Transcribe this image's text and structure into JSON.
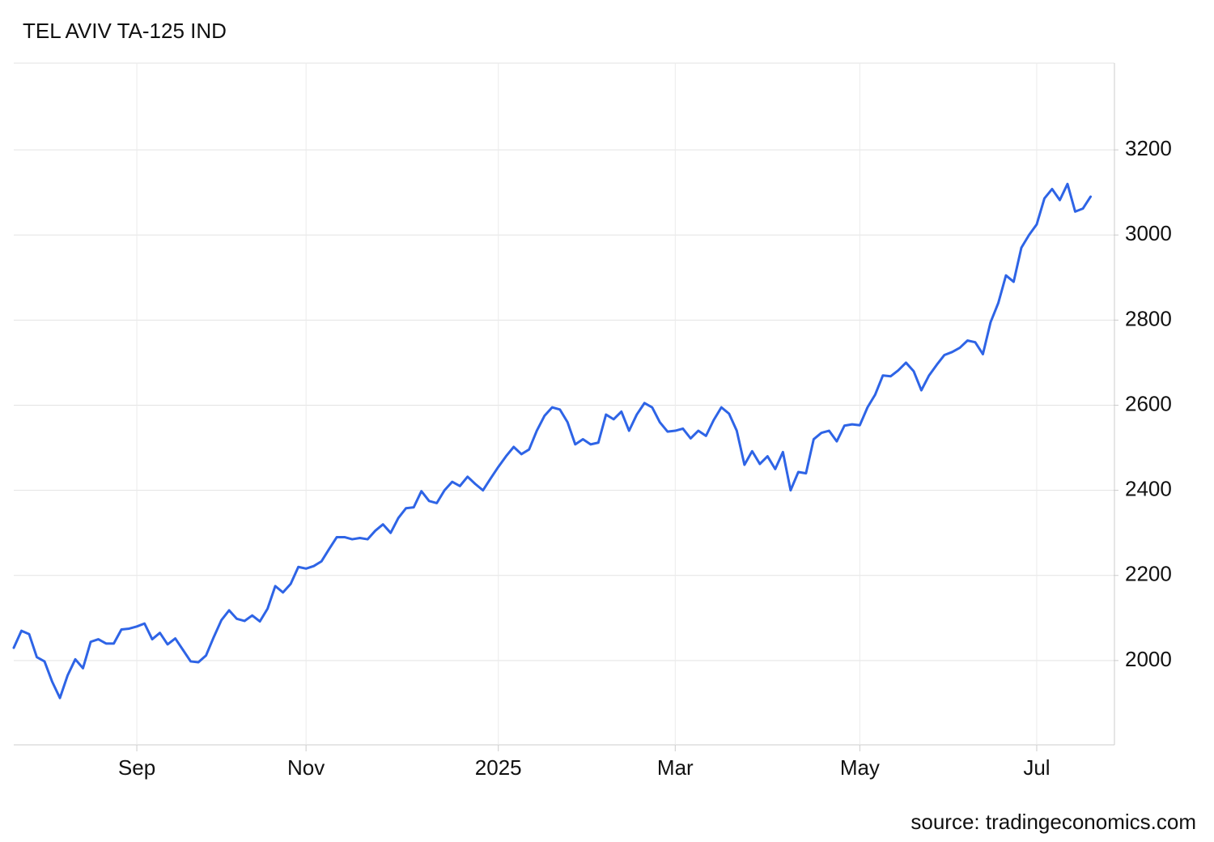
{
  "chart_data": {
    "type": "line",
    "title": "TEL AVIV TA-125 IND",
    "source": "source: tradingeconomics.com",
    "categories": [
      null,
      null,
      null,
      null,
      null,
      null,
      null,
      null,
      null,
      null,
      null,
      null,
      null,
      null,
      null,
      null,
      "Sep",
      null,
      null,
      null,
      null,
      null,
      null,
      null,
      null,
      null,
      null,
      null,
      null,
      null,
      null,
      null,
      null,
      null,
      null,
      null,
      null,
      null,
      "Nov",
      null,
      null,
      null,
      null,
      null,
      null,
      null,
      null,
      null,
      null,
      null,
      null,
      null,
      null,
      null,
      null,
      null,
      null,
      null,
      null,
      null,
      null,
      null,
      null,
      "2025",
      null,
      null,
      null,
      null,
      null,
      null,
      null,
      null,
      null,
      null,
      null,
      null,
      null,
      null,
      null,
      null,
      null,
      null,
      null,
      null,
      null,
      null,
      "Mar",
      null,
      null,
      null,
      null,
      null,
      null,
      null,
      null,
      null,
      null,
      null,
      null,
      null,
      null,
      null,
      null,
      null,
      null,
      null,
      null,
      null,
      null,
      null,
      "May",
      null,
      null,
      null,
      null,
      null,
      null,
      null,
      null,
      null,
      null,
      null,
      null,
      null,
      null,
      null,
      null,
      null,
      null,
      null,
      null,
      null,
      null,
      "Jul",
      null,
      null,
      null,
      null,
      null,
      null,
      null,
      null,
      null,
      null
    ],
    "values": [
      2030,
      2070,
      2062,
      2008,
      1998,
      1950,
      1912,
      1965,
      2003,
      1982,
      2044,
      2050,
      2040,
      2040,
      2073,
      2075,
      2080,
      2087,
      2050,
      2065,
      2038,
      2052,
      2025,
      1998,
      1996,
      2012,
      2055,
      2095,
      2118,
      2098,
      2093,
      2106,
      2092,
      2122,
      2175,
      2160,
      2180,
      2220,
      2216,
      2222,
      2233,
      2262,
      2290,
      2290,
      2285,
      2288,
      2285,
      2305,
      2320,
      2300,
      2335,
      2358,
      2360,
      2398,
      2375,
      2370,
      2400,
      2420,
      2410,
      2432,
      2415,
      2400,
      2428,
      2455,
      2480,
      2502,
      2485,
      2496,
      2540,
      2575,
      2595,
      2590,
      2560,
      2508,
      2520,
      2508,
      2512,
      2578,
      2567,
      2585,
      2540,
      2578,
      2605,
      2595,
      2560,
      2538,
      2540,
      2545,
      2522,
      2540,
      2528,
      2565,
      2595,
      2580,
      2540,
      2460,
      2492,
      2462,
      2480,
      2450,
      2490,
      2400,
      2443,
      2440,
      2520,
      2535,
      2540,
      2515,
      2552,
      2555,
      2553,
      2595,
      2625,
      2670,
      2668,
      2682,
      2700,
      2680,
      2635,
      2670,
      2695,
      2718,
      2725,
      2735,
      2752,
      2748,
      2720,
      2795,
      2840,
      2905,
      2890,
      2970,
      3000,
      3025,
      3086,
      3108,
      3082,
      3120,
      3055,
      3062,
      3090,
      null,
      null,
      null
    ],
    "color": "#2e64e6",
    "ylim": [
      1800,
      3400
    ],
    "yticks": [
      2000,
      2200,
      2400,
      2600,
      2800,
      3000,
      3200
    ],
    "grid": true
  }
}
